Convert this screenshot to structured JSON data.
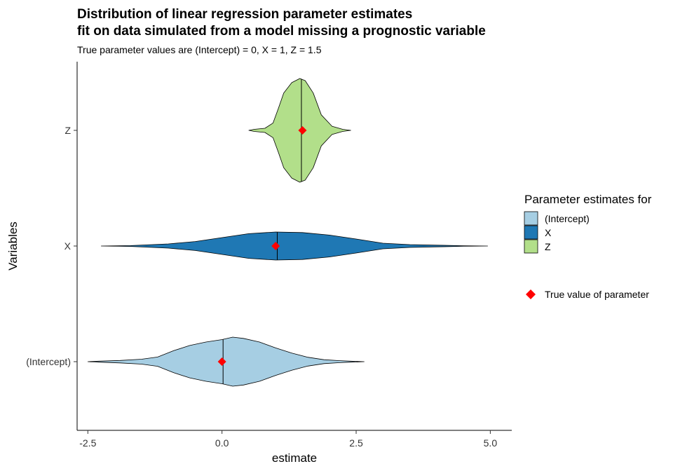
{
  "chart_data": {
    "type": "violin",
    "title_line1": "Distribution of linear regression parameter estimates",
    "title_line2": "fit on data simulated from a model missing a prognostic variable",
    "subtitle": "True parameter values are (Intercept) = 0, X = 1, Z = 1.5",
    "xlabel": "estimate",
    "ylabel": "Variables",
    "xlim": [
      -2.7,
      5.4
    ],
    "x_ticks": [
      "-2.5",
      "0.0",
      "2.5",
      "5.0"
    ],
    "categories": [
      "(Intercept)",
      "X",
      "Z"
    ],
    "orientation": "horizontal",
    "grid": false,
    "legend": {
      "title": "Parameter estimates for",
      "placement": "right",
      "items": [
        "(Intercept)",
        "X",
        "Z"
      ],
      "true_value_label": "True value of parameter"
    },
    "colors": {
      "(Intercept)": "#a6cee3",
      "X": "#1f78b4",
      "Z": "#b2df8a",
      "true_value": "#ff0000"
    },
    "series": [
      {
        "name": "(Intercept)",
        "median": 0.02,
        "true_value": 0,
        "density": [
          [
            -2.5,
            0.0
          ],
          [
            -2.3,
            0.02
          ],
          [
            -1.9,
            0.05
          ],
          [
            -1.5,
            0.1
          ],
          [
            -1.2,
            0.19
          ],
          [
            -0.9,
            0.45
          ],
          [
            -0.6,
            0.66
          ],
          [
            -0.3,
            0.8
          ],
          [
            0.0,
            0.9
          ],
          [
            0.2,
            1.0
          ],
          [
            0.4,
            0.95
          ],
          [
            0.7,
            0.8
          ],
          [
            1.0,
            0.56
          ],
          [
            1.3,
            0.35
          ],
          [
            1.6,
            0.18
          ],
          [
            1.9,
            0.08
          ],
          [
            2.2,
            0.04
          ],
          [
            2.4,
            0.02
          ],
          [
            2.65,
            0.0
          ]
        ]
      },
      {
        "name": "X",
        "median": 1.03,
        "true_value": 1,
        "density": [
          [
            -2.25,
            0.0
          ],
          [
            -1.7,
            0.03
          ],
          [
            -1.0,
            0.15
          ],
          [
            -0.5,
            0.32
          ],
          [
            0.0,
            0.6
          ],
          [
            0.5,
            0.88
          ],
          [
            1.0,
            1.0
          ],
          [
            1.5,
            0.96
          ],
          [
            2.0,
            0.78
          ],
          [
            2.5,
            0.5
          ],
          [
            3.0,
            0.2
          ],
          [
            3.5,
            0.1
          ],
          [
            4.0,
            0.06
          ],
          [
            4.5,
            0.02
          ],
          [
            4.95,
            0.0
          ]
        ]
      },
      {
        "name": "Z",
        "median": 1.48,
        "true_value": 1.5,
        "density": [
          [
            0.5,
            0.0
          ],
          [
            0.6,
            0.02
          ],
          [
            0.8,
            0.04
          ],
          [
            0.95,
            0.14
          ],
          [
            1.05,
            0.42
          ],
          [
            1.15,
            0.72
          ],
          [
            1.3,
            0.92
          ],
          [
            1.45,
            1.0
          ],
          [
            1.55,
            0.96
          ],
          [
            1.7,
            0.72
          ],
          [
            1.85,
            0.3
          ],
          [
            2.05,
            0.08
          ],
          [
            2.25,
            0.02
          ],
          [
            2.4,
            0.0
          ]
        ]
      }
    ]
  }
}
